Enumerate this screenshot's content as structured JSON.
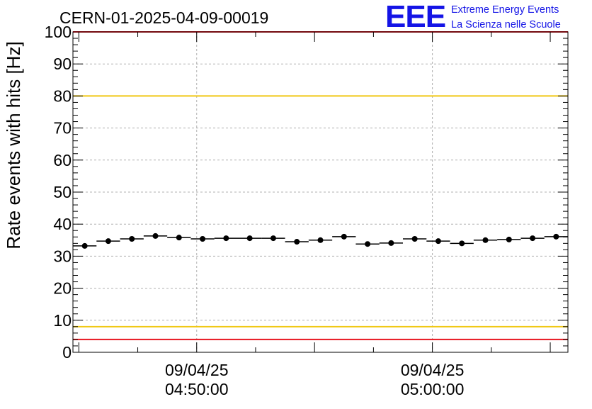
{
  "title": "CERN-01-2025-04-09-00019",
  "logo": {
    "mark": "EEE",
    "line1": "Extreme Energy Events",
    "line2": "La Scienza nelle Scuole",
    "color": "#1414e6"
  },
  "chart_data": {
    "type": "scatter",
    "ylabel": "Rate events with hits [Hz]",
    "xlabel": "",
    "ylim": [
      0,
      100
    ],
    "y_ticks": [
      0,
      10,
      20,
      30,
      40,
      50,
      60,
      70,
      80,
      90,
      100
    ],
    "x_range": [
      "04:44:45",
      "05:05:45"
    ],
    "x_tick_labels": [
      {
        "at": "04:50:00",
        "date": "09/04/25",
        "time": "04:50:00"
      },
      {
        "at": "05:00:00",
        "date": "09/04/25",
        "time": "05:00:00"
      }
    ],
    "reference_lines": [
      {
        "value": 100,
        "color": "#e8141e"
      },
      {
        "value": 80,
        "color": "#f0c814"
      },
      {
        "value": 8,
        "color": "#f0c814"
      },
      {
        "value": 4,
        "color": "#e8141e"
      }
    ],
    "grid": true,
    "bin_width_minutes": 1,
    "points": [
      {
        "x": "04:45:15",
        "y": 33.2
      },
      {
        "x": "04:46:15",
        "y": 34.7
      },
      {
        "x": "04:47:15",
        "y": 35.4
      },
      {
        "x": "04:48:15",
        "y": 36.3
      },
      {
        "x": "04:49:15",
        "y": 35.8
      },
      {
        "x": "04:50:15",
        "y": 35.4
      },
      {
        "x": "04:51:15",
        "y": 35.6
      },
      {
        "x": "04:52:15",
        "y": 35.6
      },
      {
        "x": "04:53:15",
        "y": 35.6
      },
      {
        "x": "04:54:15",
        "y": 34.5
      },
      {
        "x": "04:55:15",
        "y": 35.0
      },
      {
        "x": "04:56:15",
        "y": 36.1
      },
      {
        "x": "04:57:15",
        "y": 33.8
      },
      {
        "x": "04:58:15",
        "y": 34.1
      },
      {
        "x": "04:59:15",
        "y": 35.4
      },
      {
        "x": "05:00:15",
        "y": 34.7
      },
      {
        "x": "05:01:15",
        "y": 34.0
      },
      {
        "x": "05:02:15",
        "y": 35.0
      },
      {
        "x": "05:03:15",
        "y": 35.2
      },
      {
        "x": "05:04:15",
        "y": 35.6
      },
      {
        "x": "05:05:15",
        "y": 36.1
      }
    ]
  }
}
